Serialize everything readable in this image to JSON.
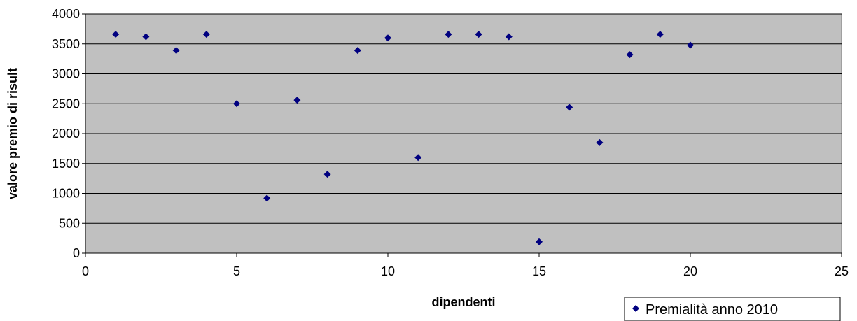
{
  "chart_data": {
    "type": "scatter",
    "title": "",
    "xlabel": "dipendenti",
    "ylabel": "valore premio di risult",
    "xlim": [
      0,
      25
    ],
    "ylim": [
      0,
      4000
    ],
    "x_ticks": [
      0,
      5,
      10,
      15,
      20,
      25
    ],
    "y_ticks": [
      0,
      500,
      1000,
      1500,
      2000,
      2500,
      3000,
      3500,
      4000
    ],
    "grid": "horizontal",
    "legend_position": "bottom-right",
    "series": [
      {
        "name": "Premialità anno 2010",
        "color": "#000080",
        "marker": "diamond",
        "points": [
          {
            "x": 1,
            "y": 3660
          },
          {
            "x": 2,
            "y": 3620
          },
          {
            "x": 3,
            "y": 3390
          },
          {
            "x": 4,
            "y": 3660
          },
          {
            "x": 5,
            "y": 2500
          },
          {
            "x": 6,
            "y": 920
          },
          {
            "x": 7,
            "y": 2560
          },
          {
            "x": 8,
            "y": 1320
          },
          {
            "x": 9,
            "y": 3390
          },
          {
            "x": 10,
            "y": 3600
          },
          {
            "x": 11,
            "y": 1600
          },
          {
            "x": 12,
            "y": 3660
          },
          {
            "x": 13,
            "y": 3660
          },
          {
            "x": 14,
            "y": 3620
          },
          {
            "x": 15,
            "y": 190
          },
          {
            "x": 16,
            "y": 2440
          },
          {
            "x": 17,
            "y": 1850
          },
          {
            "x": 18,
            "y": 3320
          },
          {
            "x": 19,
            "y": 3660
          },
          {
            "x": 20,
            "y": 3480
          }
        ]
      }
    ],
    "plot_background": "#c0c0c0",
    "gridline_color": "#000000"
  }
}
